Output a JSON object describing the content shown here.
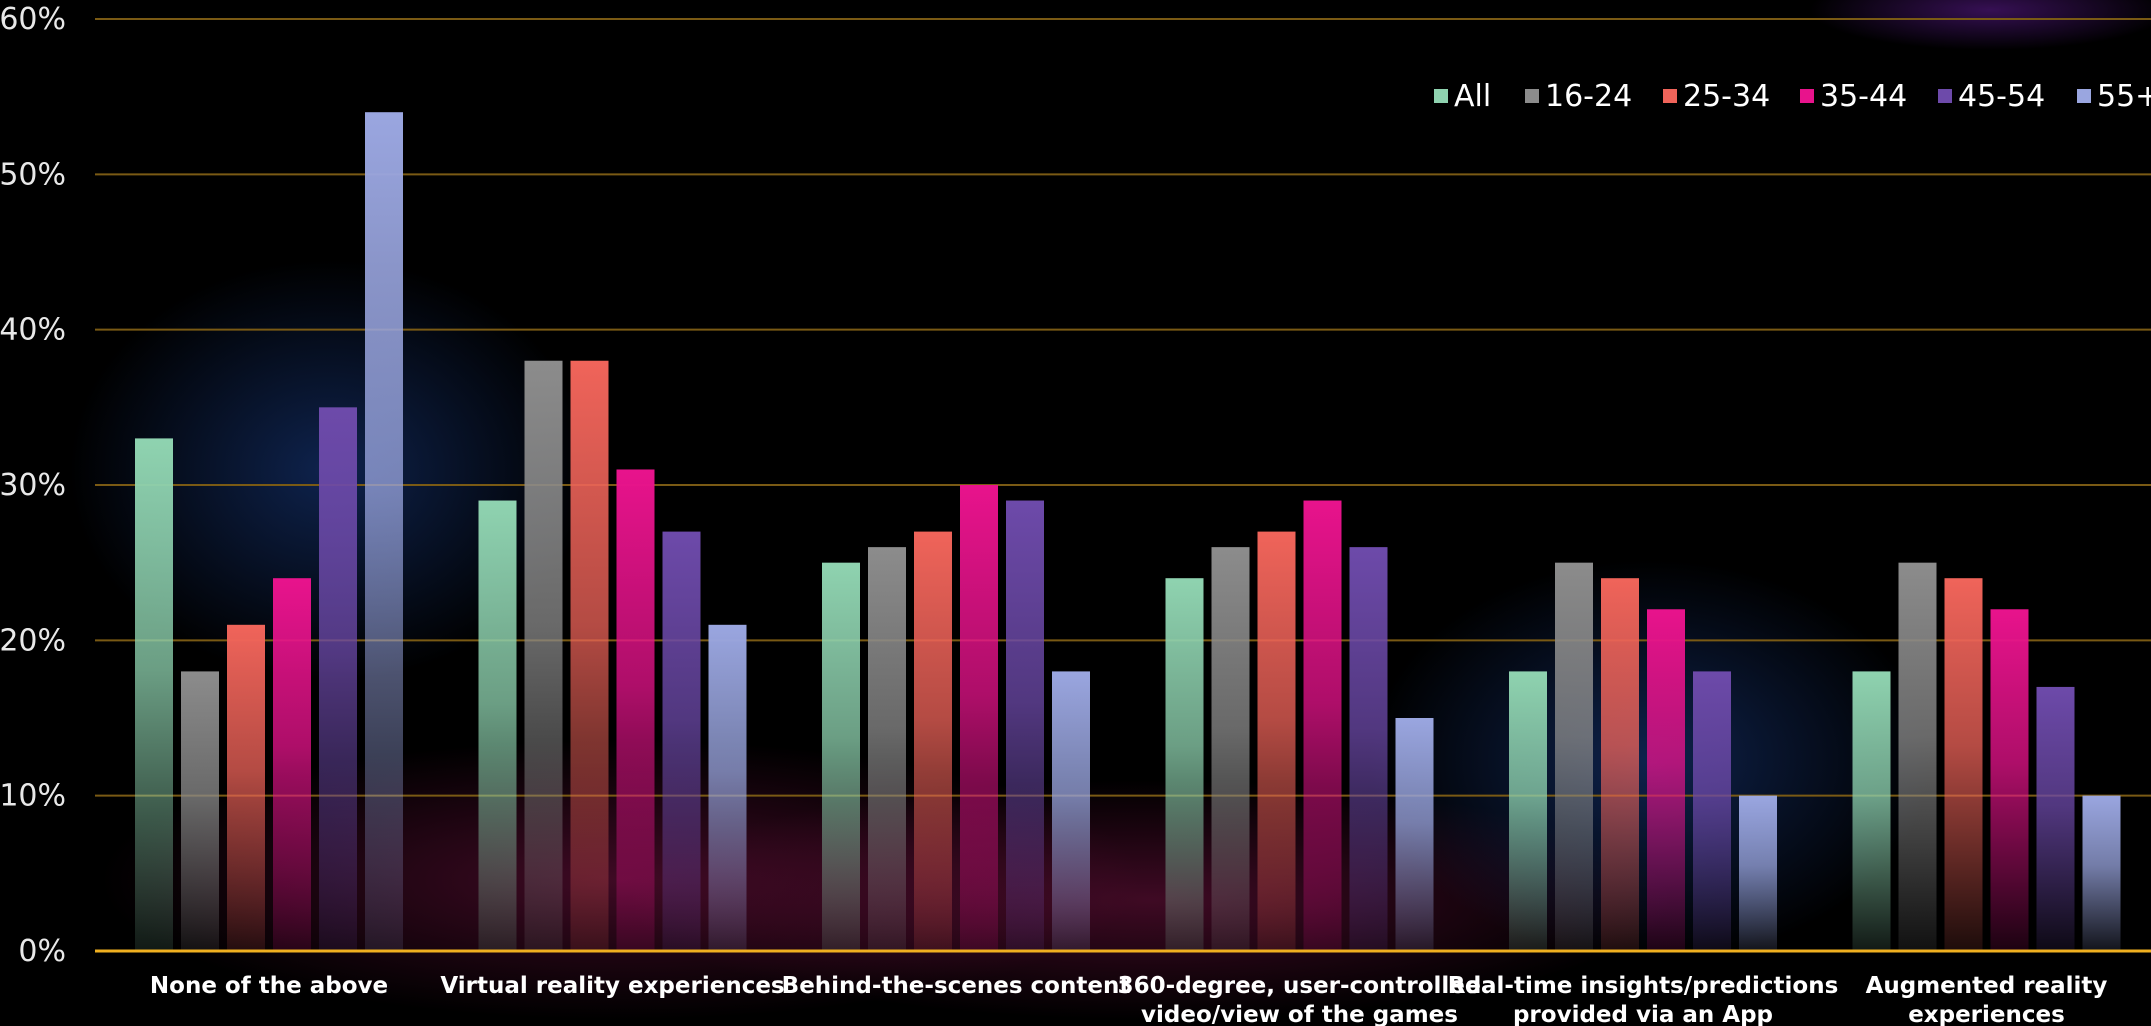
{
  "chart_data": {
    "type": "bar",
    "ylim": [
      0,
      60
    ],
    "yticks": [
      "0%",
      "10%",
      "20%",
      "30%",
      "40%",
      "50%",
      "60%"
    ],
    "grid": true,
    "legend_position": "top-right",
    "categories": [
      [
        "None of the above"
      ],
      [
        "Virtual reality experiences"
      ],
      [
        "Behind-the-scenes content"
      ],
      [
        "360-degree, user-controlled",
        "video/view of the games"
      ],
      [
        "Real-time insights/predictions",
        "provided via an App"
      ],
      [
        "Augmented reality",
        "experiences"
      ]
    ],
    "series": [
      {
        "name": "All",
        "color": "#8fd3b0",
        "values": [
          33,
          29,
          25,
          24,
          18,
          18
        ]
      },
      {
        "name": "16-24",
        "color": "#8c8c8c",
        "values": [
          18,
          38,
          26,
          26,
          25,
          25
        ]
      },
      {
        "name": "25-34",
        "color": "#f0645a",
        "values": [
          21,
          38,
          27,
          27,
          24,
          24
        ]
      },
      {
        "name": "35-44",
        "color": "#e8138c",
        "values": [
          24,
          31,
          30,
          29,
          22,
          22
        ]
      },
      {
        "name": "45-54",
        "color": "#6d4aaa",
        "values": [
          35,
          27,
          29,
          26,
          18,
          17
        ]
      },
      {
        "name": "55+",
        "color": "#9aa6e0",
        "values": [
          54,
          21,
          18,
          15,
          10,
          10
        ]
      }
    ],
    "colors": {
      "gridline": "#7a5a14",
      "baseline": "#f0b020"
    }
  }
}
